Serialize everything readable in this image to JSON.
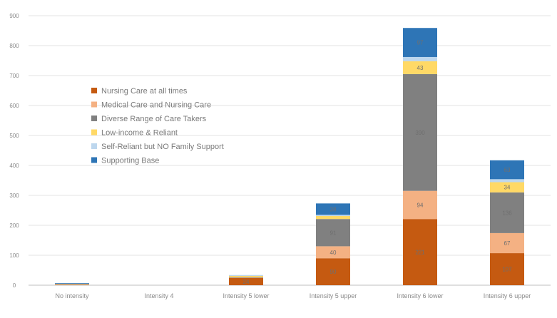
{
  "chart_data": {
    "type": "bar",
    "stacked": true,
    "categories": [
      "No intensity",
      "Intensity 4",
      "Intensity 5 lower",
      "Intensity 5 upper",
      "Intensity 6 lower",
      "Intensity 6 upper"
    ],
    "ylim": [
      0,
      900
    ],
    "yticks": [
      0,
      100,
      200,
      300,
      400,
      500,
      600,
      700,
      800,
      900
    ],
    "grid": true,
    "legend_position": "top-left",
    "series": [
      {
        "name": "Nursing Care at all times",
        "color": "#c55a11",
        "values": [
          1,
          0,
          24,
          90,
          221,
          107
        ]
      },
      {
        "name": "Medical Care and Nursing Care",
        "color": "#f4b183",
        "values": [
          1,
          0,
          1,
          40,
          94,
          67
        ]
      },
      {
        "name": "Diverse Range of Care Takers",
        "color": "#808080",
        "values": [
          1,
          0,
          2,
          91,
          390,
          136
        ]
      },
      {
        "name": "Low-income & Reliant",
        "color": "#ffd966",
        "values": [
          1,
          0,
          4,
          10,
          43,
          34
        ]
      },
      {
        "name": "Self-Reliant but NO Family Support",
        "color": "#bdd7ee",
        "values": [
          1,
          0,
          3,
          4,
          14,
          10
        ]
      },
      {
        "name": "Supporting Base",
        "color": "#2e75b6",
        "values": [
          1,
          0,
          0,
          38,
          97,
          63
        ]
      }
    ]
  }
}
